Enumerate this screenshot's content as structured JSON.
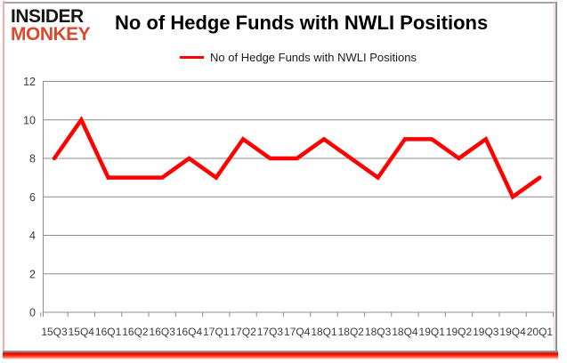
{
  "logo": {
    "line1": "INSIDER",
    "line2": "MONKEY",
    "monkey_color": "#d9492e",
    "insider_color": "#161616"
  },
  "title": "No of Hedge Funds with NWLI Positions",
  "legend": {
    "label": "No of Hedge Funds with NWLI Positions",
    "line_color": "#ff0000"
  },
  "chart_data": {
    "type": "line",
    "title": "No of Hedge Funds with NWLI Positions",
    "categories": [
      "15Q3",
      "15Q4",
      "16Q1",
      "16Q2",
      "16Q3",
      "16Q4",
      "17Q1",
      "17Q2",
      "17Q3",
      "17Q4",
      "18Q1",
      "18Q2",
      "18Q3",
      "18Q4",
      "19Q1",
      "19Q2",
      "19Q3",
      "19Q4",
      "20Q1"
    ],
    "series": [
      {
        "name": "No of Hedge Funds with NWLI Positions",
        "color": "#ff0000",
        "values": [
          8,
          10,
          7,
          7,
          7,
          8,
          7,
          9,
          8,
          8,
          9,
          8,
          7,
          9,
          9,
          8,
          9,
          6,
          7
        ]
      }
    ],
    "xlabel": "",
    "ylabel": "",
    "ylim": [
      0,
      12
    ],
    "ytick_step": 2,
    "grid": true,
    "legend_position": "top-center"
  },
  "colors": {
    "grid": "#8c8c8c",
    "axis_text": "#3c3c3c",
    "frame_pink": "#f2aba8",
    "frame_gray": "#9a9a9a",
    "frame_bottom_red": "#ff1500"
  }
}
